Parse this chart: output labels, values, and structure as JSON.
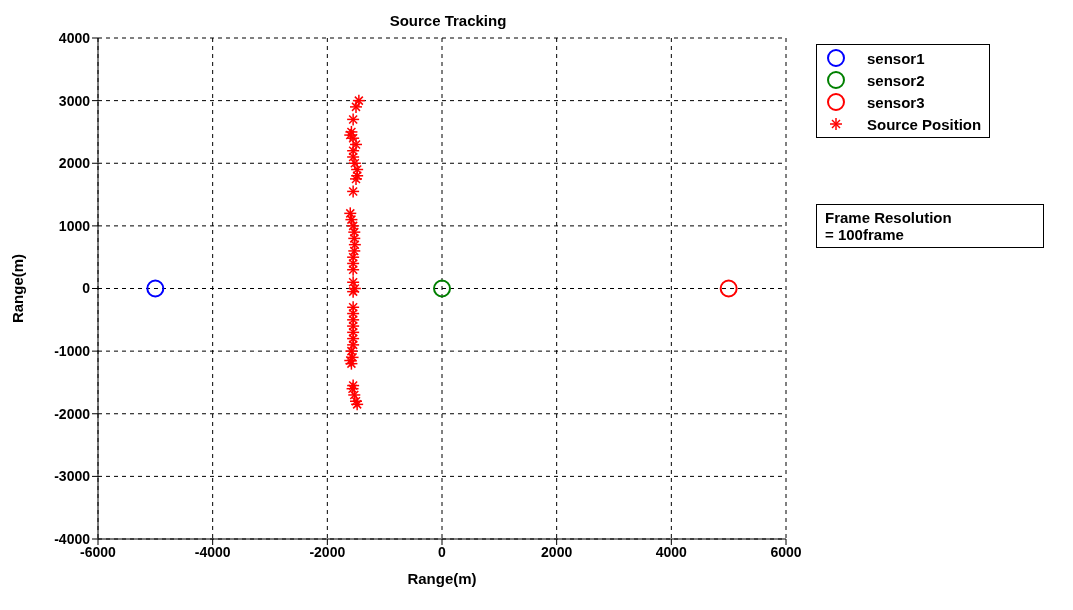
{
  "chart_data": {
    "type": "scatter",
    "title": "Source Tracking",
    "xlabel": "Range(m)",
    "ylabel": "Range(m)",
    "xlim": [
      -6000,
      6000
    ],
    "xticks": [
      -6000,
      -4000,
      -2000,
      0,
      2000,
      4000,
      6000
    ],
    "ylim": [
      -4000,
      4000
    ],
    "yticks": [
      -4000,
      -3000,
      -2000,
      -1000,
      0,
      1000,
      2000,
      3000,
      4000
    ],
    "grid": true,
    "legend": "right",
    "annotations": [
      "Frame Resolution\n= 100frame"
    ],
    "series": [
      {
        "name": "sensor1",
        "color": "#0000ff",
        "marker": "circle",
        "x": [
          -5000
        ],
        "values": [
          0
        ]
      },
      {
        "name": "sensor2",
        "color": "#008000",
        "marker": "circle",
        "x": [
          0
        ],
        "values": [
          0
        ]
      },
      {
        "name": "sensor3",
        "color": "#ff0000",
        "marker": "circle",
        "x": [
          5000
        ],
        "values": [
          0
        ]
      },
      {
        "name": "Source Position",
        "color": "#ff0000",
        "marker": "cross",
        "x": [
          -1450,
          -1500,
          -1550,
          -1580,
          -1600,
          -1550,
          -1500,
          -1550,
          -1550,
          -1520,
          -1480,
          -1480,
          -1500,
          -1550,
          -1600,
          -1580,
          -1550,
          -1530,
          -1530,
          -1520,
          -1530,
          -1550,
          -1550,
          -1550,
          -1550,
          -1520,
          -1550,
          -1550,
          -1550,
          -1550,
          -1550,
          -1550,
          -1550,
          -1550,
          -1580,
          -1560,
          -1600,
          -1580,
          -1550,
          -1560,
          -1530,
          -1500,
          -1480
        ],
        "values": [
          3000,
          2900,
          2700,
          2500,
          2450,
          2400,
          2300,
          2200,
          2100,
          2000,
          1900,
          1800,
          1750,
          1550,
          1200,
          1100,
          1000,
          900,
          800,
          700,
          600,
          500,
          400,
          300,
          100,
          0,
          -50,
          -300,
          -400,
          -500,
          -600,
          -700,
          -800,
          -900,
          -1000,
          -1100,
          -1150,
          -1200,
          -1550,
          -1600,
          -1700,
          -1800,
          -1850
        ]
      }
    ]
  }
}
